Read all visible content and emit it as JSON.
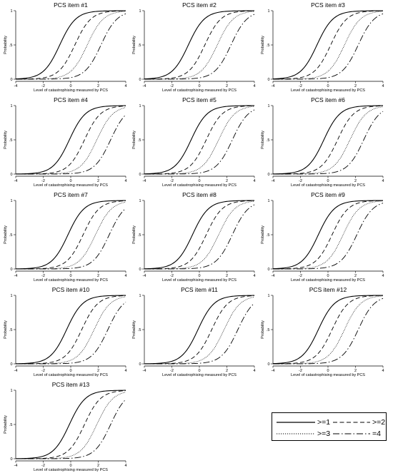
{
  "chart_data": {
    "type": "line",
    "xlabel": "Level of catastrophising measured by PCS",
    "ylabel": "Probability",
    "xlim": [
      -4,
      4
    ],
    "ylim": [
      0,
      1
    ],
    "xticks": [
      "-4",
      "-2",
      "0",
      "2",
      "4"
    ],
    "yticks": [
      "0",
      ".5",
      "1"
    ],
    "grid": false,
    "legend_position": "bottom-right",
    "series_styles": [
      {
        "name": ">=1",
        "dash": "solid",
        "color": "#000000"
      },
      {
        "name": ">=2",
        "dash": "long-dash",
        "color": "#000000"
      },
      {
        "name": ">=3",
        "dash": "dotted",
        "color": "#000000"
      },
      {
        "name": "=4",
        "dash": "dash-dot",
        "color": "#000000"
      }
    ],
    "panels": [
      {
        "title": "PCS item #1",
        "thresholds": [
          -0.8,
          0.3,
          1.2,
          2.2
        ]
      },
      {
        "title": "PCS item #2",
        "thresholds": [
          -0.8,
          0.4,
          1.3,
          2.3
        ]
      },
      {
        "title": "PCS item #3",
        "thresholds": [
          -0.8,
          0.2,
          1.2,
          2.2
        ]
      },
      {
        "title": "PCS item #4",
        "thresholds": [
          -0.1,
          1.0,
          1.9,
          2.9
        ]
      },
      {
        "title": "PCS item #5",
        "thresholds": [
          -0.6,
          0.5,
          1.4,
          2.4
        ]
      },
      {
        "title": "PCS item #6",
        "thresholds": [
          -0.3,
          0.7,
          1.6,
          2.6
        ]
      },
      {
        "title": "PCS item #7",
        "thresholds": [
          -0.2,
          0.9,
          1.8,
          2.8
        ]
      },
      {
        "title": "PCS item #8",
        "thresholds": [
          -0.5,
          0.5,
          1.4,
          2.4
        ]
      },
      {
        "title": "PCS item #9",
        "thresholds": [
          -0.7,
          0.3,
          1.1,
          2.1
        ]
      },
      {
        "title": "PCS item #10",
        "thresholds": [
          -0.3,
          0.8,
          1.7,
          2.7
        ]
      },
      {
        "title": "PCS item #11",
        "thresholds": [
          -0.1,
          0.9,
          1.8,
          2.8
        ]
      },
      {
        "title": "PCS item #12",
        "thresholds": [
          -0.7,
          0.3,
          1.2,
          2.2
        ]
      },
      {
        "title": "PCS item #13",
        "thresholds": [
          -0.1,
          1.0,
          1.9,
          2.9
        ]
      }
    ]
  }
}
